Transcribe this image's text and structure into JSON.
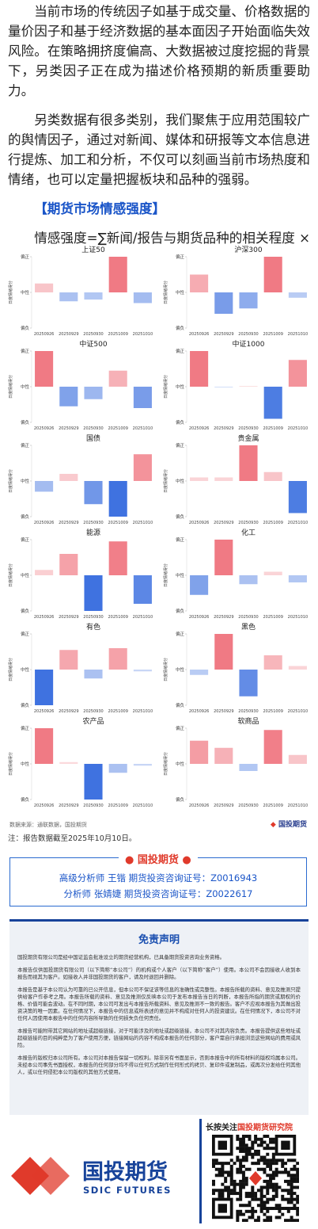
{
  "intro": {
    "paragraphs": [
      "当前市场的传统因子如基于成交量、价格数据的量价因子和基于经济数据的基本面因子开始面临失效风险。在策略拥挤度偏高、大数据被过度挖掘的背景下，另类因子正在成为描述价格预期的新质重要助力。",
      "另类数据有很多类别，我们聚焦于应用范围较广的舆情因子，通过对新闻、媒体和研报等文本信息进行提炼、加工和分析，不仅可以刻画当前市场热度和情绪，也可以定量把握板块和品种的强弱。"
    ],
    "section_title": "【期货市场情感强度】",
    "formula": "情感强度=∑新闻/报告与期货品种的相关程度 × 新闻/报告情感打分。"
  },
  "chart_data": [
    {
      "type": "bar",
      "title": "上证50",
      "y_label": "日度情绪得分",
      "categories": [
        "20250926",
        "20250929",
        "20250930",
        "20251009",
        "20251010"
      ],
      "values": [
        0.25,
        -0.25,
        -0.2,
        1.0,
        -0.3
      ],
      "ylim": [
        -1,
        1
      ],
      "yticks": [
        {
          "value": 1,
          "label": "偏正"
        },
        {
          "value": 0,
          "label": "中性"
        },
        {
          "value": -1,
          "label": "偏负"
        }
      ],
      "color_positive": "#f07a84",
      "color_negative": "#3f72e0"
    },
    {
      "type": "bar",
      "title": "沪深300",
      "y_label": "日度情绪得分",
      "categories": [
        "20250926",
        "20250929",
        "20250930",
        "20251009",
        "20251010"
      ],
      "values": [
        0.5,
        -0.6,
        -0.45,
        1.0,
        -0.15
      ],
      "ylim": [
        -1,
        1
      ],
      "yticks": [
        {
          "value": 1,
          "label": "偏正"
        },
        {
          "value": 0,
          "label": "中性"
        },
        {
          "value": -1,
          "label": "偏负"
        }
      ],
      "color_positive": "#f07a84",
      "color_negative": "#3f72e0"
    },
    {
      "type": "bar",
      "title": "中证500",
      "y_label": "日度情绪得分",
      "categories": [
        "20250926",
        "20250929",
        "20250930",
        "20251009",
        "20251010"
      ],
      "values": [
        1.0,
        -0.55,
        -0.35,
        0.45,
        -0.6
      ],
      "ylim": [
        -1,
        1
      ],
      "yticks": [
        {
          "value": 1,
          "label": "偏正"
        },
        {
          "value": 0,
          "label": "中性"
        },
        {
          "value": -1,
          "label": "偏负"
        }
      ],
      "color_positive": "#f07a84",
      "color_negative": "#3f72e0"
    },
    {
      "type": "bar",
      "title": "中证1000",
      "y_label": "日度情绪得分",
      "categories": [
        "20250926",
        "20250929",
        "20250930",
        "20251009",
        "20251010"
      ],
      "values": [
        1.0,
        -0.02,
        0.02,
        -0.9,
        0.75
      ],
      "ylim": [
        -1,
        1
      ],
      "yticks": [
        {
          "value": 1,
          "label": "偏正"
        },
        {
          "value": 0,
          "label": "中性"
        },
        {
          "value": -1,
          "label": "偏负"
        }
      ],
      "color_positive": "#f07a84",
      "color_negative": "#3f72e0"
    },
    {
      "type": "bar",
      "title": "国债",
      "y_label": "日度情绪得分",
      "categories": [
        "20250926",
        "20250929",
        "20250930",
        "20251009",
        "20251010"
      ],
      "values": [
        -0.3,
        0.2,
        -0.65,
        -1.0,
        0.75
      ],
      "ylim": [
        -1,
        1
      ],
      "yticks": [
        {
          "value": 1,
          "label": "偏正"
        },
        {
          "value": 0,
          "label": "中性"
        },
        {
          "value": -1,
          "label": "偏负"
        }
      ],
      "color_positive": "#f07a84",
      "color_negative": "#3f72e0"
    },
    {
      "type": "bar",
      "title": "贵金属",
      "y_label": "日度情绪得分",
      "categories": [
        "20250926",
        "20250929",
        "20250930",
        "20251009",
        "20251010"
      ],
      "values": [
        0.1,
        0.1,
        1.0,
        0.25,
        -0.9
      ],
      "ylim": [
        -1,
        1
      ],
      "yticks": [
        {
          "value": 1,
          "label": "偏正"
        },
        {
          "value": 0,
          "label": "中性"
        },
        {
          "value": -1,
          "label": "偏负"
        }
      ],
      "color_positive": "#f07a84",
      "color_negative": "#3f72e0"
    },
    {
      "type": "bar",
      "title": "能源",
      "y_label": "日度情绪得分",
      "categories": [
        "20250926",
        "20250929",
        "20250930",
        "20251009",
        "20251010"
      ],
      "values": [
        0.15,
        0.6,
        -1.0,
        0.95,
        -0.8
      ],
      "ylim": [
        -1,
        1
      ],
      "yticks": [
        {
          "value": 1,
          "label": "偏正"
        },
        {
          "value": 0,
          "label": "中性"
        },
        {
          "value": -1,
          "label": "偏负"
        }
      ],
      "color_positive": "#f07a84",
      "color_negative": "#3f72e0"
    },
    {
      "type": "bar",
      "title": "化工",
      "y_label": "日度情绪得分",
      "categories": [
        "20250926",
        "20250929",
        "20250930",
        "20251009",
        "20251010"
      ],
      "values": [
        -0.55,
        1.0,
        -0.25,
        0.1,
        -0.2
      ],
      "ylim": [
        -1,
        1
      ],
      "yticks": [
        {
          "value": 1,
          "label": "偏正"
        },
        {
          "value": 0,
          "label": "中性"
        },
        {
          "value": -1,
          "label": "偏负"
        }
      ],
      "color_positive": "#f07a84",
      "color_negative": "#3f72e0"
    },
    {
      "type": "bar",
      "title": "有色",
      "y_label": "日度情绪得分",
      "categories": [
        "20250926",
        "20250929",
        "20250930",
        "20251009",
        "20251010"
      ],
      "values": [
        -1.0,
        0.55,
        -0.25,
        0.6,
        -0.05
      ],
      "ylim": [
        -1,
        1
      ],
      "yticks": [
        {
          "value": 1,
          "label": "偏正"
        },
        {
          "value": 0,
          "label": "中性"
        },
        {
          "value": -1,
          "label": "偏负"
        }
      ],
      "color_positive": "#f07a84",
      "color_negative": "#3f72e0"
    },
    {
      "type": "bar",
      "title": "黑色",
      "y_label": "日度情绪得分",
      "categories": [
        "20250926",
        "20250929",
        "20250930",
        "20251009",
        "20251010"
      ],
      "values": [
        -0.15,
        1.0,
        -0.75,
        0.4,
        0.1
      ],
      "ylim": [
        -1,
        1
      ],
      "yticks": [
        {
          "value": 1,
          "label": "偏正"
        },
        {
          "value": 0,
          "label": "中性"
        },
        {
          "value": -1,
          "label": "偏负"
        }
      ],
      "color_positive": "#f07a84",
      "color_negative": "#3f72e0"
    },
    {
      "type": "bar",
      "title": "农产品",
      "y_label": "日度情绪得分",
      "categories": [
        "20250926",
        "20250929",
        "20250930",
        "20251009",
        "20251010"
      ],
      "values": [
        1.0,
        0.05,
        -1.0,
        -0.25,
        -0.05
      ],
      "ylim": [
        -1,
        1
      ],
      "yticks": [
        {
          "value": 1,
          "label": "偏正"
        },
        {
          "value": 0,
          "label": "中性"
        },
        {
          "value": -1,
          "label": "偏负"
        }
      ],
      "color_positive": "#f07a84",
      "color_negative": "#3f72e0"
    },
    {
      "type": "bar",
      "title": "软商品",
      "y_label": "日度情绪得分",
      "categories": [
        "20250926",
        "20250929",
        "20250930",
        "20251009",
        "20251010"
      ],
      "values": [
        0.65,
        0.45,
        -0.2,
        0.95,
        0.25
      ],
      "ylim": [
        -1,
        1
      ],
      "yticks": [
        {
          "value": 1,
          "label": "偏正"
        },
        {
          "value": 0,
          "label": "中性"
        },
        {
          "value": -1,
          "label": "偏负"
        }
      ],
      "color_positive": "#f07a84",
      "color_negative": "#3f72e0"
    }
  ],
  "source": "数据来源：通联数据，国投期货",
  "source_logo": "国投期货",
  "note": "注：报告数据截至2025年10月10日。",
  "analysts": {
    "brand": "国投期货",
    "lines": [
      "高级分析师  王锴  期货投资咨询证号：Z0016943",
      "分析师  张婧婕  期货投资咨询证号：Z0022617"
    ]
  },
  "disclaimer": {
    "title": "免责声明",
    "paragraphs": [
      "国投期货有限公司是经中国证监会批准设立的期货经营机构，已具备期货投资咨询业务资格。",
      "本报告仅供国投期货有限公司（以下简称“本公司”）的机构或个人客户（以下简称“客户”）使用。本公司不会因接收人收到本报告而视其为客户。如接收人并非国投期货的客户，请及时退回并删除。",
      "本报告是基于本公司认为可靠的已公开信息，但本公司不保证该等信息的准确性或完整性。本报告所载的资料、意见及推测只提供给客户作参考之用。本报告所载的资料、意见及推测仅反映本公司于发布本报告当日的判断，本报告所指的期货或期权的价格、价值可能会波动。在不同时期，本公司可发出与本报告所载资料、意见及推测不一致的报告。客户不应视本报告为其做出投资决策的唯一因素。在任何情况下，本报告中的信息或所表述的意见并不构成对任何人的投资建议。在任何情况下，本公司不对任何人因使用本报告中的任何内容所导致的任何损失负任何责任。",
      "本报告可能附带其它网站的地址或超级链接，对于可能涉及的地址或超级链接，本公司不对其内容负责。本报告提供这些地址或超级链接的目的纯粹是为了客户使用方便，链接网站的内容不构成本报告的任何部分，客户需自行承担浏览这些网站的费用或风险。",
      "本报告的版权归本公司所有。本公司对本报告保留一切权利。除非另有书面显示，否则本报告中的所有材料的版权均属本公司。未经本公司事先书面授权，本报告的任何部分均不得以任何方式制作任何形式的拷贝、复印件或复制品，或再次分发给任何其他人，或以任何侵犯本公司版权的其他方式使用。"
    ]
  },
  "footer": {
    "logo_cn": "国投期货",
    "logo_en": "SDIC FUTURES",
    "follow": "长按关注",
    "follow_name": "国投期货研究院"
  }
}
